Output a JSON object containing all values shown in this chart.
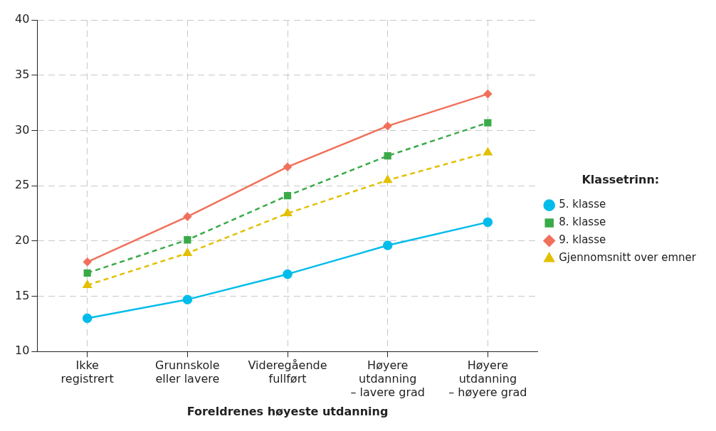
{
  "chart_data": {
    "type": "line",
    "xlabel": "Foreldrenes høyeste utdanning",
    "legend_title": "Klassetrinn:",
    "categories": [
      "Ikke\nregistrert",
      "Grunnskole\neller lavere",
      "Videregående\nfullført",
      "Høyere\nutdanning\n– lavere grad",
      "Høyere\nutdanning\n– høyere grad"
    ],
    "series": [
      {
        "name": "5. klasse",
        "color": "#00bcea",
        "values": [
          13.0,
          14.7,
          17.0,
          19.6,
          21.7
        ],
        "marker": "circle",
        "line_style": "solid"
      },
      {
        "name": "8. klasse",
        "color": "#3aaa48",
        "values": [
          17.1,
          20.1,
          24.1,
          27.7,
          30.7
        ],
        "marker": "square",
        "line_style": "dashed"
      },
      {
        "name": "9. klasse",
        "color": "#f0705a",
        "values": [
          18.1,
          22.2,
          26.7,
          30.4,
          33.3
        ],
        "marker": "diamond",
        "line_style": "solid"
      },
      {
        "name": "Gjennomsnitt over emner",
        "color": "#e2c000",
        "values": [
          16.0,
          18.9,
          22.5,
          25.5,
          28.0
        ],
        "marker": "triangle",
        "line_style": "dashed"
      }
    ],
    "ylim": [
      10,
      40
    ],
    "yticks": [
      10,
      15,
      20,
      25,
      30,
      35,
      40
    ],
    "grid": true,
    "legend": "right"
  }
}
